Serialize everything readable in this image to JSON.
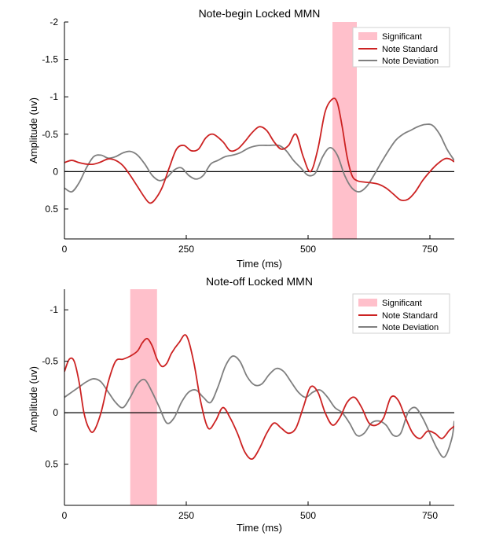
{
  "colors": {
    "significant": "#ffc0cb",
    "note_standard": "#cc2222",
    "note_deviation": "#7f7f7f",
    "zero_line": "#000000"
  },
  "chart_data": [
    {
      "type": "line",
      "title": "Note-begin Locked MMN",
      "xlabel": "Time (ms)",
      "ylabel": "Amplitude (uv)",
      "xlim": [
        0,
        800
      ],
      "ylim": [
        -2,
        0.9
      ],
      "y_reversed": true,
      "xticks": [
        0,
        250,
        500,
        750
      ],
      "yticks": [
        -2,
        -1.5,
        -1,
        -0.5,
        0,
        0.5
      ],
      "ytick_labels": [
        "-2",
        "-1.5",
        "-1",
        "-0.5",
        "0",
        "0.5"
      ],
      "legend_position": "top-right",
      "legend": [
        "Significant",
        "Note Standard",
        "Note Deviation"
      ],
      "significant_windows": [
        [
          550,
          600
        ]
      ],
      "series": [
        {
          "name": "Note Standard",
          "x": [
            0,
            15,
            30,
            45,
            60,
            75,
            90,
            105,
            120,
            135,
            150,
            165,
            175,
            185,
            200,
            215,
            230,
            245,
            260,
            275,
            290,
            305,
            325,
            340,
            355,
            370,
            385,
            400,
            415,
            430,
            445,
            460,
            475,
            490,
            505,
            520,
            535,
            550,
            560,
            570,
            580,
            590,
            600,
            615,
            630,
            645,
            660,
            675,
            690,
            705,
            720,
            735,
            750,
            765,
            780,
            790,
            800
          ],
          "y": [
            -0.12,
            -0.15,
            -0.12,
            -0.1,
            -0.1,
            -0.13,
            -0.17,
            -0.15,
            -0.08,
            0.05,
            0.2,
            0.35,
            0.42,
            0.38,
            0.22,
            -0.05,
            -0.3,
            -0.35,
            -0.28,
            -0.3,
            -0.45,
            -0.5,
            -0.4,
            -0.28,
            -0.3,
            -0.4,
            -0.52,
            -0.6,
            -0.55,
            -0.4,
            -0.3,
            -0.35,
            -0.5,
            -0.2,
            0.0,
            -0.3,
            -0.8,
            -0.97,
            -0.92,
            -0.6,
            -0.2,
            0.05,
            0.12,
            0.14,
            0.15,
            0.17,
            0.22,
            0.3,
            0.38,
            0.37,
            0.27,
            0.12,
            0.0,
            -0.1,
            -0.17,
            -0.17,
            -0.13
          ]
        },
        {
          "name": "Note Deviation",
          "x": [
            0,
            15,
            30,
            45,
            60,
            75,
            90,
            105,
            120,
            135,
            150,
            165,
            180,
            195,
            210,
            225,
            240,
            255,
            270,
            285,
            300,
            315,
            330,
            345,
            360,
            380,
            400,
            420,
            440,
            455,
            470,
            485,
            500,
            515,
            530,
            545,
            560,
            575,
            590,
            605,
            620,
            635,
            650,
            665,
            680,
            695,
            710,
            725,
            740,
            755,
            770,
            785,
            800
          ],
          "y": [
            0.22,
            0.27,
            0.15,
            -0.05,
            -0.2,
            -0.22,
            -0.18,
            -0.2,
            -0.25,
            -0.27,
            -0.22,
            -0.1,
            0.05,
            0.12,
            0.08,
            -0.02,
            -0.05,
            0.05,
            0.1,
            0.05,
            -0.1,
            -0.15,
            -0.2,
            -0.22,
            -0.25,
            -0.32,
            -0.35,
            -0.35,
            -0.35,
            -0.28,
            -0.15,
            -0.05,
            0.05,
            0.02,
            -0.2,
            -0.32,
            -0.22,
            0.05,
            0.22,
            0.27,
            0.2,
            0.05,
            -0.12,
            -0.28,
            -0.42,
            -0.5,
            -0.55,
            -0.6,
            -0.63,
            -0.62,
            -0.5,
            -0.3,
            -0.15
          ]
        }
      ]
    },
    {
      "type": "line",
      "title": "Note-off Locked MMN",
      "xlabel": "Time (ms)",
      "ylabel": "Amplitude (uv)",
      "xlim": [
        0,
        800
      ],
      "ylim": [
        -1.2,
        0.9
      ],
      "y_reversed": true,
      "xticks": [
        0,
        250,
        500,
        750
      ],
      "yticks": [
        -1,
        -0.5,
        0,
        0.5
      ],
      "ytick_labels": [
        "-1",
        "-0.5",
        "0",
        "0.5"
      ],
      "legend_position": "top-right",
      "legend": [
        "Significant",
        "Note Standard",
        "Note Deviation"
      ],
      "significant_windows": [
        [
          135,
          190
        ]
      ],
      "series": [
        {
          "name": "Note Standard",
          "x": [
            0,
            10,
            20,
            30,
            40,
            50,
            60,
            75,
            90,
            105,
            120,
            135,
            150,
            160,
            170,
            180,
            190,
            200,
            210,
            220,
            235,
            250,
            265,
            280,
            295,
            310,
            325,
            340,
            355,
            370,
            385,
            400,
            415,
            430,
            445,
            460,
            475,
            490,
            505,
            520,
            535,
            550,
            565,
            580,
            595,
            610,
            625,
            640,
            655,
            670,
            685,
            700,
            715,
            730,
            745,
            760,
            775,
            790,
            800
          ],
          "y": [
            -0.4,
            -0.52,
            -0.5,
            -0.3,
            0.0,
            0.15,
            0.18,
            0.0,
            -0.3,
            -0.5,
            -0.52,
            -0.55,
            -0.6,
            -0.68,
            -0.72,
            -0.65,
            -0.52,
            -0.45,
            -0.48,
            -0.58,
            -0.68,
            -0.75,
            -0.5,
            -0.1,
            0.15,
            0.08,
            -0.05,
            0.05,
            0.2,
            0.38,
            0.45,
            0.35,
            0.2,
            0.1,
            0.15,
            0.2,
            0.15,
            -0.05,
            -0.25,
            -0.2,
            0.0,
            0.12,
            0.05,
            -0.1,
            -0.15,
            -0.05,
            0.1,
            0.12,
            0.05,
            -0.15,
            -0.12,
            0.05,
            0.2,
            0.25,
            0.18,
            0.2,
            0.25,
            0.17,
            0.13
          ]
        },
        {
          "name": "Note Deviation",
          "x": [
            0,
            15,
            30,
            45,
            60,
            75,
            90,
            105,
            120,
            135,
            150,
            165,
            180,
            195,
            210,
            225,
            240,
            255,
            270,
            285,
            300,
            315,
            330,
            345,
            360,
            375,
            390,
            405,
            420,
            435,
            450,
            465,
            480,
            495,
            510,
            525,
            540,
            555,
            570,
            585,
            600,
            615,
            630,
            645,
            660,
            675,
            690,
            705,
            720,
            735,
            750,
            765,
            780,
            795,
            800
          ],
          "y": [
            -0.15,
            -0.2,
            -0.25,
            -0.3,
            -0.33,
            -0.3,
            -0.2,
            -0.1,
            -0.05,
            -0.15,
            -0.28,
            -0.32,
            -0.2,
            -0.05,
            0.1,
            0.05,
            -0.1,
            -0.2,
            -0.22,
            -0.15,
            -0.1,
            -0.25,
            -0.45,
            -0.55,
            -0.5,
            -0.35,
            -0.27,
            -0.28,
            -0.37,
            -0.43,
            -0.4,
            -0.3,
            -0.2,
            -0.15,
            -0.2,
            -0.22,
            -0.15,
            -0.05,
            0.0,
            0.1,
            0.22,
            0.2,
            0.1,
            0.08,
            0.12,
            0.22,
            0.2,
            0.0,
            -0.05,
            0.05,
            0.2,
            0.35,
            0.43,
            0.25,
            0.08
          ]
        }
      ]
    }
  ]
}
